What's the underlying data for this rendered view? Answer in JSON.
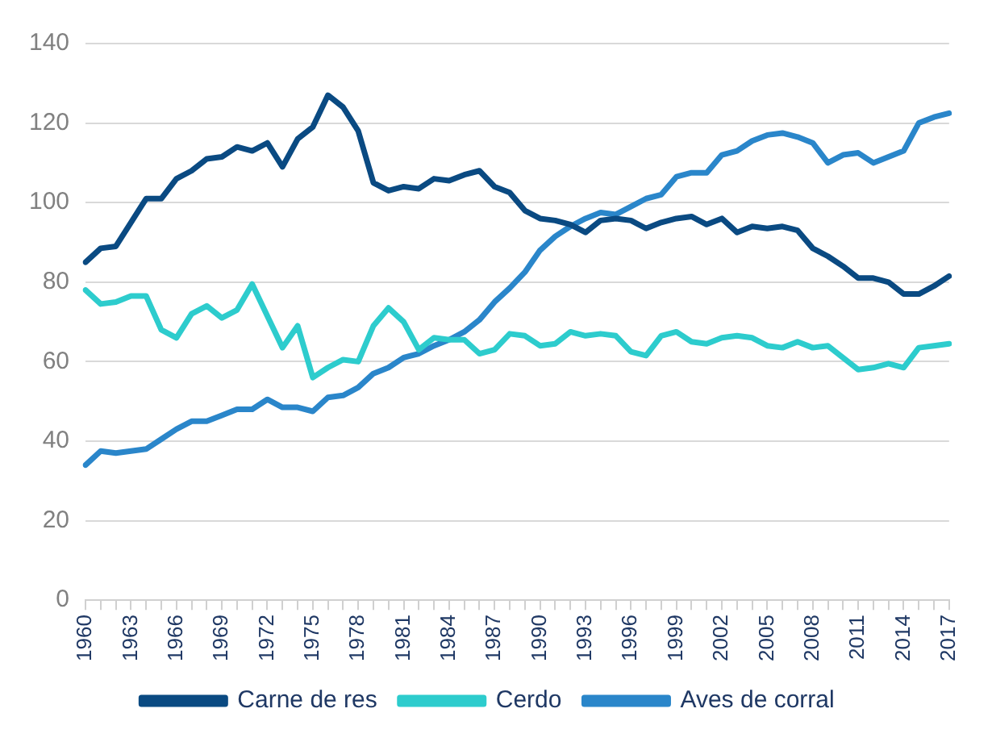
{
  "chart_data": {
    "type": "line",
    "categories": [
      "1960",
      null,
      null,
      "1963",
      null,
      null,
      "1966",
      null,
      null,
      "1969",
      null,
      null,
      "1972",
      null,
      null,
      "1975",
      null,
      null,
      "1978",
      null,
      null,
      "1981",
      null,
      null,
      "1984",
      null,
      null,
      "1987",
      null,
      null,
      "1990",
      null,
      null,
      "1993",
      null,
      null,
      "1996",
      null,
      null,
      "1999",
      null,
      null,
      "2002",
      null,
      null,
      "2005",
      null,
      null,
      "2008",
      null,
      null,
      "2011",
      null,
      null,
      "2014",
      null,
      null,
      "2017"
    ],
    "series": [
      {
        "name": "Carne de res",
        "color": "#0a4a82",
        "values": [
          85,
          88.5,
          89,
          95,
          101,
          101,
          106,
          108,
          111,
          111.5,
          114,
          113,
          115,
          109,
          116,
          119,
          127,
          124,
          118,
          105,
          103,
          104,
          103.5,
          106,
          105.5,
          107,
          108,
          104,
          102.5,
          98,
          96,
          95.5,
          94.5,
          92.5,
          95.5,
          96,
          95.5,
          93.5,
          95,
          96,
          96.5,
          94.5,
          96,
          92.5,
          94,
          93.5,
          94,
          93,
          88.5,
          86.5,
          84,
          81,
          81,
          80,
          77,
          77,
          79,
          81.5
        ]
      },
      {
        "name": "Cerdo",
        "color": "#2dcccd",
        "values": [
          78,
          74.5,
          75,
          76.5,
          76.5,
          68,
          66,
          72,
          74,
          71,
          73,
          79.5,
          71.5,
          63.5,
          69,
          56,
          58.5,
          60.5,
          60,
          69,
          73.5,
          70,
          63,
          66,
          65.5,
          65.5,
          62,
          63,
          67,
          66.5,
          64,
          64.5,
          67.5,
          66.5,
          67,
          66.5,
          62.5,
          61.5,
          66.5,
          67.5,
          65,
          64.5,
          66,
          66.5,
          66,
          64,
          63.5,
          65,
          63.5,
          64,
          61,
          58,
          58.5,
          59.5,
          58.5,
          63.5,
          64,
          64.5
        ]
      },
      {
        "name": "Aves de corral",
        "color": "#2a86ca",
        "values": [
          34,
          37.5,
          37,
          37.5,
          38,
          40.5,
          43,
          45,
          45,
          46.5,
          48,
          48,
          50.5,
          48.5,
          48.5,
          47.5,
          51,
          51.5,
          53.5,
          57,
          58.5,
          61,
          62,
          64,
          65.5,
          67.5,
          70.5,
          75,
          78.5,
          82.5,
          88,
          91.5,
          94,
          96,
          97.5,
          97,
          99,
          101,
          102,
          106.5,
          107.5,
          107.5,
          112,
          113,
          115.5,
          117,
          117.5,
          116.5,
          115,
          110,
          112,
          112.5,
          110,
          111.5,
          113,
          120,
          121.5,
          122.5
        ]
      }
    ],
    "ylim": [
      0,
      140
    ],
    "yticks": [
      0,
      20,
      40,
      60,
      80,
      100,
      120,
      140
    ],
    "grid": "y",
    "legend": "bottom",
    "marker": "none",
    "line_style": "solid"
  }
}
